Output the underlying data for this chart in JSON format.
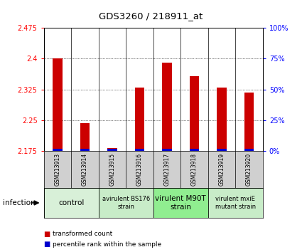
{
  "title": "GDS3260 / 218911_at",
  "samples": [
    "GSM213913",
    "GSM213914",
    "GSM213915",
    "GSM213916",
    "GSM213917",
    "GSM213918",
    "GSM213919",
    "GSM213920"
  ],
  "red_values": [
    2.401,
    2.243,
    2.183,
    2.33,
    2.39,
    2.358,
    2.33,
    2.318
  ],
  "blue_values_pct": [
    2,
    2,
    2,
    2,
    2,
    2,
    2,
    2
  ],
  "ylim_left": [
    2.175,
    2.475
  ],
  "ylim_right": [
    0,
    100
  ],
  "yticks_left": [
    2.175,
    2.25,
    2.325,
    2.4,
    2.475
  ],
  "yticks_right": [
    0,
    25,
    50,
    75,
    100
  ],
  "ytick_labels_left": [
    "2.175",
    "2.25",
    "2.325",
    "2.4",
    "2.475"
  ],
  "ytick_labels_right": [
    "0%",
    "25%",
    "50%",
    "75%",
    "100%"
  ],
  "group_defs": [
    {
      "label": "control",
      "indices": [
        0,
        1
      ],
      "color": "#d8f0d8"
    },
    {
      "label": "avirulent BS176\nstrain",
      "indices": [
        2,
        3
      ],
      "color": "#c8ecc8"
    },
    {
      "label": "virulent M90T\nstrain",
      "indices": [
        4,
        5
      ],
      "color": "#90ee90"
    },
    {
      "label": "virulent mxiE\nmutant strain",
      "indices": [
        6,
        7
      ],
      "color": "#c8ecc8"
    }
  ],
  "bar_color_red": "#cc0000",
  "bar_color_blue": "#0000cc",
  "sample_box_color": "#d0d0d0",
  "infection_label": "infection",
  "legend_red": "transformed count",
  "legend_blue": "percentile rank within the sample",
  "background_color": "#ffffff"
}
